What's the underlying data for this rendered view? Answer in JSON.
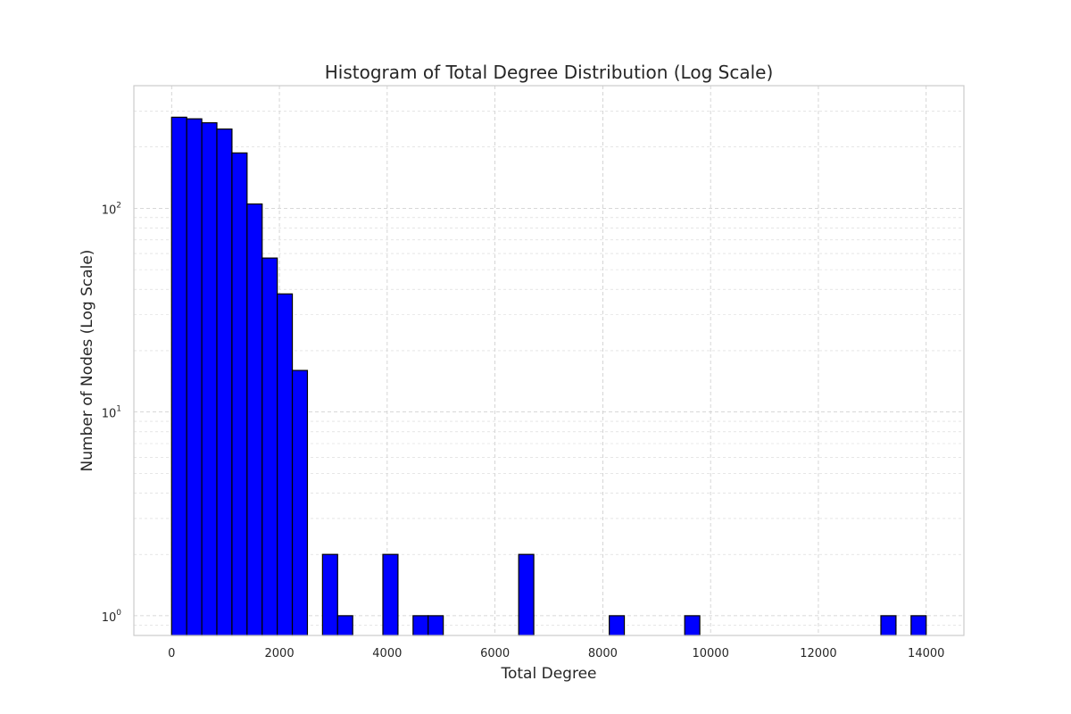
{
  "chart_data": {
    "type": "bar",
    "title": "Histogram of Total Degree Distribution (Log Scale)",
    "xlabel": "Total Degree",
    "ylabel": "Number of Nodes (Log Scale)",
    "y_scale": "log",
    "grid": true,
    "bar_color": "#0000ff",
    "edge_color": "#000000",
    "xlim": [
      -700,
      14700
    ],
    "ylim": [
      0.8,
      400
    ],
    "x_ticks": [
      0,
      2000,
      4000,
      6000,
      8000,
      10000,
      12000,
      14000
    ],
    "x_tick_labels": [
      "0",
      "2000",
      "4000",
      "6000",
      "8000",
      "10000",
      "12000",
      "14000"
    ],
    "y_ticks": [
      1,
      10,
      100
    ],
    "y_tick_labels": [
      {
        "base": "10",
        "exp": "0"
      },
      {
        "base": "10",
        "exp": "1"
      },
      {
        "base": "10",
        "exp": "2"
      }
    ],
    "bin_edges_start": 0,
    "bin_width": 280,
    "bins": [
      {
        "start": 0,
        "count": 280
      },
      {
        "start": 280,
        "count": 275
      },
      {
        "start": 560,
        "count": 263
      },
      {
        "start": 840,
        "count": 245
      },
      {
        "start": 1120,
        "count": 187
      },
      {
        "start": 1400,
        "count": 105
      },
      {
        "start": 1680,
        "count": 57
      },
      {
        "start": 1960,
        "count": 38
      },
      {
        "start": 2240,
        "count": 16
      },
      {
        "start": 2800,
        "count": 2
      },
      {
        "start": 3080,
        "count": 1
      },
      {
        "start": 3920,
        "count": 2
      },
      {
        "start": 4480,
        "count": 1
      },
      {
        "start": 4760,
        "count": 1
      },
      {
        "start": 6440,
        "count": 2
      },
      {
        "start": 8120,
        "count": 1
      },
      {
        "start": 9520,
        "count": 1
      },
      {
        "start": 13160,
        "count": 1
      },
      {
        "start": 13720,
        "count": 1
      }
    ]
  }
}
